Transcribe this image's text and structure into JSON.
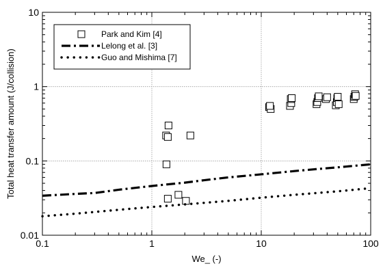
{
  "chart_data": {
    "type": "scatter",
    "xlabel": "We_ (-)",
    "ylabel": "Total heat transfer amount (J/collision)",
    "x_scale": "log",
    "y_scale": "log",
    "xlim": [
      0.1,
      100
    ],
    "ylim": [
      0.01,
      10
    ],
    "x_ticks": [
      {
        "value": 0.1,
        "label": "0.1"
      },
      {
        "value": 1,
        "label": "1"
      },
      {
        "value": 10,
        "label": "10"
      },
      {
        "value": 100,
        "label": "100"
      }
    ],
    "y_ticks": [
      {
        "value": 0.01,
        "label": "0.01"
      },
      {
        "value": 0.1,
        "label": "0.1"
      },
      {
        "value": 1,
        "label": "1"
      },
      {
        "value": 10,
        "label": "10"
      }
    ],
    "grid": true,
    "legend_position": "top-left",
    "series": [
      {
        "name": "Park and Kim [4]",
        "style": "open-square",
        "points": [
          [
            1.35,
            0.22
          ],
          [
            1.4,
            0.21
          ],
          [
            1.42,
            0.3
          ],
          [
            1.36,
            0.09
          ],
          [
            1.4,
            0.031
          ],
          [
            1.75,
            0.035
          ],
          [
            2.05,
            0.029
          ],
          [
            2.25,
            0.22
          ],
          [
            11.8,
            0.53
          ],
          [
            12.2,
            0.5
          ],
          [
            12.0,
            0.55
          ],
          [
            18.3,
            0.55
          ],
          [
            18.8,
            0.6
          ],
          [
            18.6,
            0.68
          ],
          [
            19.0,
            0.7
          ],
          [
            32.0,
            0.58
          ],
          [
            32.5,
            0.62
          ],
          [
            33.0,
            0.7
          ],
          [
            33.5,
            0.74
          ],
          [
            39.0,
            0.68
          ],
          [
            40.0,
            0.72
          ],
          [
            48.0,
            0.56
          ],
          [
            49.0,
            0.62
          ],
          [
            49.5,
            0.7
          ],
          [
            50.0,
            0.73
          ],
          [
            51.0,
            0.58
          ],
          [
            70.0,
            0.68
          ],
          [
            71.0,
            0.73
          ],
          [
            72.0,
            0.79
          ],
          [
            73.0,
            0.75
          ]
        ]
      },
      {
        "name": "Lelong et al. [3]",
        "style": "dash-dot",
        "points": [
          [
            0.1,
            0.034
          ],
          [
            0.2,
            0.036
          ],
          [
            0.3,
            0.037
          ],
          [
            0.5,
            0.041
          ],
          [
            1,
            0.046
          ],
          [
            2,
            0.051
          ],
          [
            3,
            0.055
          ],
          [
            5,
            0.06
          ],
          [
            10,
            0.066
          ],
          [
            20,
            0.073
          ],
          [
            30,
            0.077
          ],
          [
            50,
            0.082
          ],
          [
            100,
            0.09
          ]
        ]
      },
      {
        "name": "Guo and Mishima [7]",
        "style": "dotted",
        "points": [
          [
            0.1,
            0.018
          ],
          [
            0.2,
            0.0195
          ],
          [
            0.5,
            0.022
          ],
          [
            1,
            0.024
          ],
          [
            2,
            0.026
          ],
          [
            5,
            0.029
          ],
          [
            10,
            0.032
          ],
          [
            20,
            0.035
          ],
          [
            50,
            0.039
          ],
          [
            100,
            0.043
          ]
        ]
      }
    ]
  }
}
